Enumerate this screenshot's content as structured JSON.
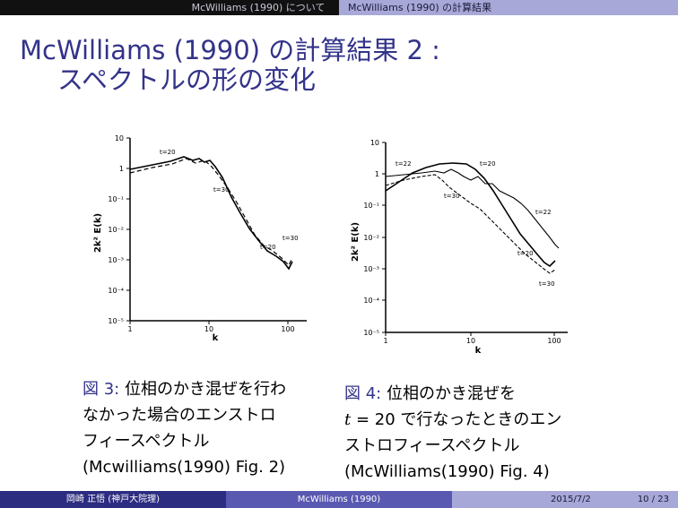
{
  "nav": {
    "section": "McWilliams (1990) について",
    "subsection": "McWilliams (1990) の計算結果"
  },
  "slide": {
    "title_line1": "McWilliams (1990) の計算結果 2 :",
    "title_line2": "スペクトルの形の変化"
  },
  "figures": [
    {
      "ylabel": "2k² E(k)",
      "xlabel": "k",
      "y_ticks": [
        "10",
        "1",
        "10⁻¹",
        "10⁻²",
        "10⁻³",
        "10⁻⁴",
        "10⁻⁵"
      ],
      "x_ticks": [
        "1",
        "10",
        "100"
      ],
      "curve_labels": [
        "t=20",
        "t=30",
        "t=30",
        "t=20"
      ],
      "caption_label": "図 3:",
      "caption_lines": [
        "位相のかき混ぜを行わ",
        "なかった場合のエンストロ",
        "フィースペクトル",
        "(Mcwilliams(1990) Fig. 2)"
      ]
    },
    {
      "ylabel": "2k² E(k)",
      "xlabel": "k",
      "y_ticks": [
        "10",
        "1",
        "10⁻¹",
        "10⁻²",
        "10⁻³",
        "10⁻⁴",
        "10⁻⁵"
      ],
      "x_ticks": [
        "1",
        "10",
        "100"
      ],
      "curve_labels": [
        "t=22",
        "t=20",
        "t=30",
        "t=22",
        "t=20",
        "t=30"
      ],
      "caption_label": "図 4:",
      "caption_line1": "位相のかき混ぜを",
      "caption_t": "t",
      "caption_eq": " = 20 で行なったときのエン",
      "caption_lines": [
        "ストロフィースペクトル",
        "(McWilliams(1990) Fig. 4)"
      ]
    }
  ],
  "footer": {
    "author": "岡崎 正悟 (神戸大院理)",
    "short_title": "McWilliams (1990)",
    "date": "2015/7/2",
    "page": "10 / 23"
  }
}
